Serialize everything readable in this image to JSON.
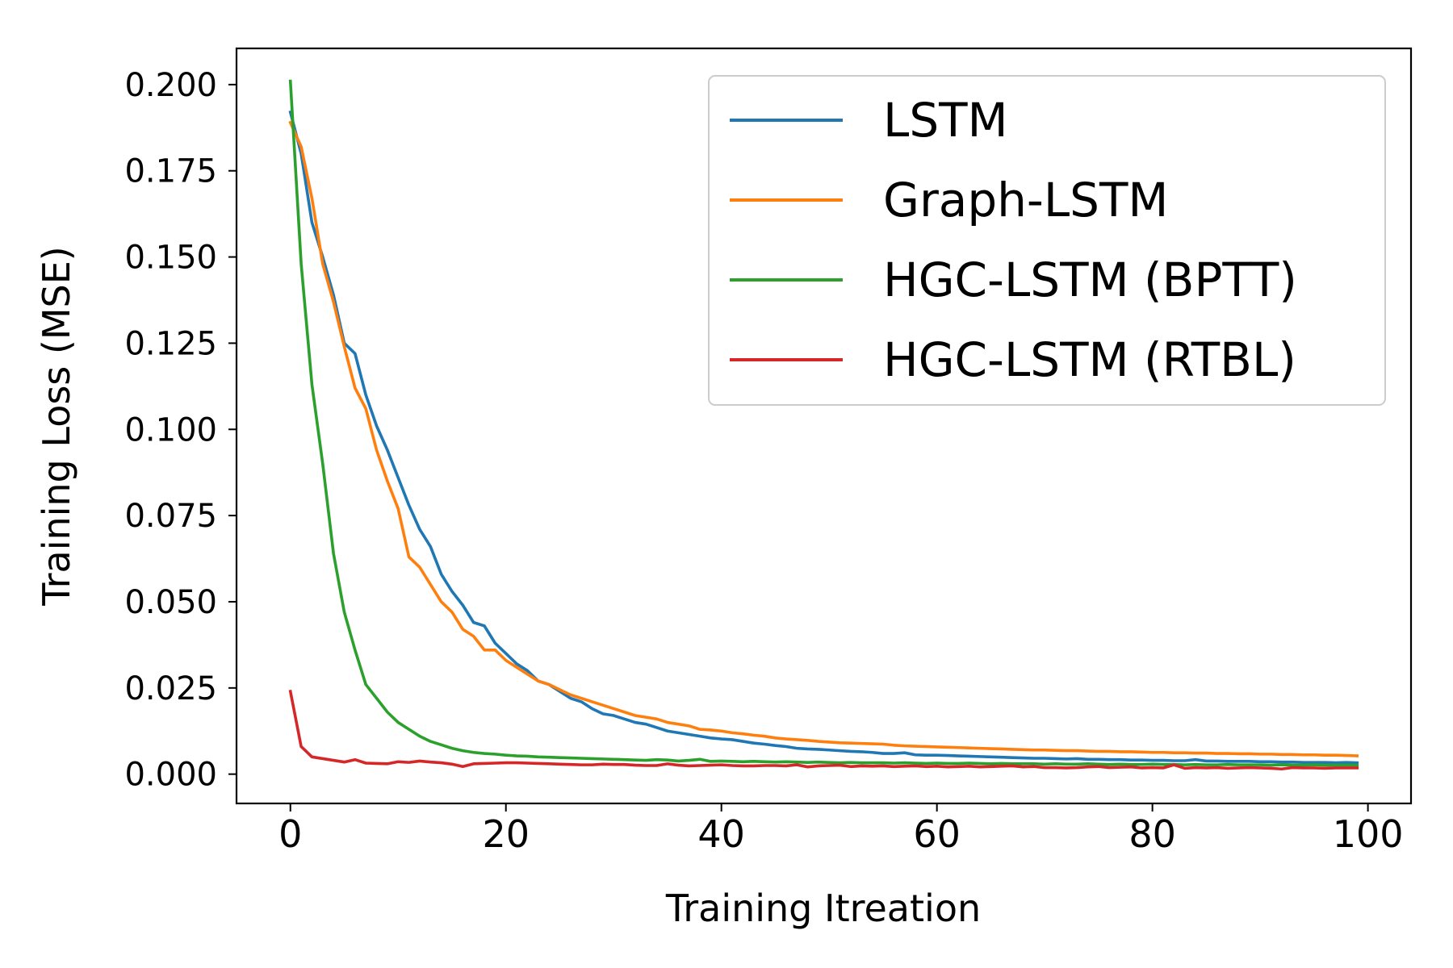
{
  "chart_data": {
    "type": "line",
    "title": "",
    "xlabel": "Training Itreation",
    "ylabel": "Training Loss (MSE)",
    "xlim": [
      -5,
      104
    ],
    "ylim": [
      -0.0085,
      0.2105
    ],
    "xticks": [
      0,
      20,
      40,
      60,
      80,
      100
    ],
    "xtick_labels": [
      "0",
      "20",
      "40",
      "60",
      "80",
      "100"
    ],
    "yticks": [
      0,
      0.025,
      0.05,
      0.075,
      0.1,
      0.125,
      0.15,
      0.175,
      0.2
    ],
    "ytick_labels": [
      "0.000",
      "0.025",
      "0.050",
      "0.075",
      "0.100",
      "0.125",
      "0.150",
      "0.175",
      "0.200"
    ],
    "grid": false,
    "legend_position": "top-right",
    "series": [
      {
        "name": "LSTM",
        "color": "#1f77b4",
        "x": [
          0,
          1,
          2,
          3,
          4,
          5,
          6,
          7,
          8,
          9,
          10,
          11,
          12,
          13,
          14,
          15,
          16,
          17,
          18,
          19,
          20,
          21,
          22,
          23,
          24,
          25,
          26,
          27,
          28,
          29,
          30,
          31,
          32,
          33,
          34,
          35,
          36,
          37,
          38,
          39,
          40,
          41,
          42,
          43,
          44,
          45,
          46,
          47,
          48,
          49,
          50,
          51,
          52,
          53,
          54,
          55,
          56,
          57,
          58,
          59,
          60,
          61,
          62,
          63,
          64,
          65,
          66,
          67,
          68,
          69,
          70,
          71,
          72,
          73,
          74,
          75,
          76,
          77,
          78,
          79,
          80,
          81,
          82,
          83,
          84,
          85,
          86,
          87,
          88,
          89,
          90,
          91,
          92,
          93,
          94,
          95,
          96,
          97,
          98,
          99
        ],
        "y": [
          0.192,
          0.18,
          0.16,
          0.15,
          0.139,
          0.125,
          0.122,
          0.11,
          0.101,
          0.094,
          0.086,
          0.078,
          0.071,
          0.066,
          0.058,
          0.053,
          0.049,
          0.044,
          0.043,
          0.038,
          0.035,
          0.032,
          0.03,
          0.027,
          0.026,
          0.024,
          0.022,
          0.021,
          0.019,
          0.0175,
          0.017,
          0.016,
          0.015,
          0.0145,
          0.0135,
          0.0125,
          0.012,
          0.0115,
          0.011,
          0.0105,
          0.0102,
          0.01,
          0.0095,
          0.009,
          0.0087,
          0.0083,
          0.008,
          0.0075,
          0.0073,
          0.0072,
          0.007,
          0.0068,
          0.0066,
          0.0065,
          0.0063,
          0.006,
          0.006,
          0.0062,
          0.0056,
          0.0055,
          0.0055,
          0.0054,
          0.0053,
          0.0052,
          0.0051,
          0.005,
          0.0049,
          0.0048,
          0.0047,
          0.0046,
          0.0046,
          0.0045,
          0.0044,
          0.0045,
          0.0043,
          0.0043,
          0.0042,
          0.0042,
          0.0041,
          0.0041,
          0.004,
          0.004,
          0.0039,
          0.0039,
          0.0042,
          0.0038,
          0.0038,
          0.0037,
          0.0037,
          0.0037,
          0.0036,
          0.0036,
          0.0035,
          0.0035,
          0.0034,
          0.0034,
          0.0034,
          0.0033,
          0.0034,
          0.0033
        ]
      },
      {
        "name": "Graph-LSTM",
        "color": "#ff7f0e",
        "x": [
          0,
          1,
          2,
          3,
          4,
          5,
          6,
          7,
          8,
          9,
          10,
          11,
          12,
          13,
          14,
          15,
          16,
          17,
          18,
          19,
          20,
          21,
          22,
          23,
          24,
          25,
          26,
          27,
          28,
          29,
          30,
          31,
          32,
          33,
          34,
          35,
          36,
          37,
          38,
          39,
          40,
          41,
          42,
          43,
          44,
          45,
          46,
          47,
          48,
          49,
          50,
          51,
          52,
          53,
          54,
          55,
          56,
          57,
          58,
          59,
          60,
          61,
          62,
          63,
          64,
          65,
          66,
          67,
          68,
          69,
          70,
          71,
          72,
          73,
          74,
          75,
          76,
          77,
          78,
          79,
          80,
          81,
          82,
          83,
          84,
          85,
          86,
          87,
          88,
          89,
          90,
          91,
          92,
          93,
          94,
          95,
          96,
          97,
          98,
          99
        ],
        "y": [
          0.189,
          0.182,
          0.167,
          0.148,
          0.137,
          0.124,
          0.112,
          0.106,
          0.094,
          0.085,
          0.077,
          0.063,
          0.06,
          0.055,
          0.05,
          0.047,
          0.042,
          0.04,
          0.036,
          0.036,
          0.033,
          0.031,
          0.029,
          0.027,
          0.026,
          0.0245,
          0.023,
          0.022,
          0.021,
          0.02,
          0.019,
          0.018,
          0.017,
          0.0165,
          0.016,
          0.015,
          0.0145,
          0.014,
          0.013,
          0.0128,
          0.0125,
          0.012,
          0.0117,
          0.0113,
          0.011,
          0.0105,
          0.0102,
          0.01,
          0.0098,
          0.0095,
          0.0093,
          0.0091,
          0.009,
          0.0089,
          0.0088,
          0.0087,
          0.0084,
          0.0082,
          0.0081,
          0.008,
          0.0079,
          0.0078,
          0.0077,
          0.0076,
          0.0075,
          0.0074,
          0.0073,
          0.0072,
          0.0071,
          0.007,
          0.007,
          0.0069,
          0.0068,
          0.0068,
          0.0067,
          0.0066,
          0.0066,
          0.0065,
          0.0065,
          0.0064,
          0.0063,
          0.0063,
          0.0062,
          0.0062,
          0.0061,
          0.0061,
          0.006,
          0.006,
          0.0059,
          0.0059,
          0.0058,
          0.0058,
          0.0057,
          0.0057,
          0.0056,
          0.0056,
          0.0055,
          0.0055,
          0.0054,
          0.0053
        ]
      },
      {
        "name": "HGC-LSTM (BPTT)",
        "color": "#2ca02c",
        "x": [
          0,
          1,
          2,
          3,
          4,
          5,
          6,
          7,
          8,
          9,
          10,
          11,
          12,
          13,
          14,
          15,
          16,
          17,
          18,
          19,
          20,
          21,
          22,
          23,
          24,
          25,
          26,
          27,
          28,
          29,
          30,
          31,
          32,
          33,
          34,
          35,
          36,
          37,
          38,
          39,
          40,
          41,
          42,
          43,
          44,
          45,
          46,
          47,
          48,
          49,
          50,
          51,
          52,
          53,
          54,
          55,
          56,
          57,
          58,
          59,
          60,
          61,
          62,
          63,
          64,
          65,
          66,
          67,
          68,
          69,
          70,
          71,
          72,
          73,
          74,
          75,
          76,
          77,
          78,
          79,
          80,
          81,
          82,
          83,
          84,
          85,
          86,
          87,
          88,
          89,
          90,
          91,
          92,
          93,
          94,
          95,
          96,
          97,
          98,
          99
        ],
        "y": [
          0.201,
          0.148,
          0.113,
          0.09,
          0.064,
          0.047,
          0.036,
          0.026,
          0.022,
          0.018,
          0.015,
          0.013,
          0.011,
          0.0095,
          0.0085,
          0.0075,
          0.0068,
          0.0063,
          0.006,
          0.0058,
          0.0055,
          0.0053,
          0.0052,
          0.005,
          0.0049,
          0.0048,
          0.0047,
          0.0046,
          0.0045,
          0.0044,
          0.0043,
          0.0042,
          0.0041,
          0.004,
          0.0042,
          0.0041,
          0.0038,
          0.004,
          0.0043,
          0.0037,
          0.0038,
          0.0037,
          0.0036,
          0.0037,
          0.0036,
          0.0035,
          0.0036,
          0.0035,
          0.0034,
          0.0035,
          0.0034,
          0.0033,
          0.0034,
          0.0033,
          0.0033,
          0.0033,
          0.0032,
          0.0033,
          0.0032,
          0.0031,
          0.0032,
          0.0031,
          0.0031,
          0.0032,
          0.0031,
          0.003,
          0.0031,
          0.003,
          0.003,
          0.003,
          0.0029,
          0.003,
          0.0029,
          0.0029,
          0.003,
          0.0029,
          0.0028,
          0.0029,
          0.0028,
          0.0028,
          0.0029,
          0.0028,
          0.0028,
          0.0027,
          0.0028,
          0.0027,
          0.0027,
          0.0028,
          0.0027,
          0.0027,
          0.0027,
          0.0026,
          0.0027,
          0.0026,
          0.0026,
          0.0027,
          0.0026,
          0.0026,
          0.0026,
          0.0026
        ]
      },
      {
        "name": "HGC-LSTM (RTBL)",
        "color": "#d62728",
        "x": [
          0,
          1,
          2,
          3,
          4,
          5,
          6,
          7,
          8,
          9,
          10,
          11,
          12,
          13,
          14,
          15,
          16,
          17,
          18,
          19,
          20,
          21,
          22,
          23,
          24,
          25,
          26,
          27,
          28,
          29,
          30,
          31,
          32,
          33,
          34,
          35,
          36,
          37,
          38,
          39,
          40,
          41,
          42,
          43,
          44,
          45,
          46,
          47,
          48,
          49,
          50,
          51,
          52,
          53,
          54,
          55,
          56,
          57,
          58,
          59,
          60,
          61,
          62,
          63,
          64,
          65,
          66,
          67,
          68,
          69,
          70,
          71,
          72,
          73,
          74,
          75,
          76,
          77,
          78,
          79,
          80,
          81,
          82,
          83,
          84,
          85,
          86,
          87,
          88,
          89,
          90,
          91,
          92,
          93,
          94,
          95,
          96,
          97,
          98,
          99
        ],
        "y": [
          0.024,
          0.008,
          0.005,
          0.0045,
          0.004,
          0.0035,
          0.0042,
          0.0032,
          0.0031,
          0.003,
          0.0036,
          0.0034,
          0.0038,
          0.0035,
          0.0033,
          0.0029,
          0.0022,
          0.003,
          0.0031,
          0.0032,
          0.0033,
          0.0033,
          0.0032,
          0.0031,
          0.003,
          0.0029,
          0.0028,
          0.0027,
          0.0027,
          0.0029,
          0.0028,
          0.0028,
          0.0026,
          0.0025,
          0.0025,
          0.003,
          0.0026,
          0.0024,
          0.0025,
          0.0026,
          0.0027,
          0.0025,
          0.0024,
          0.0024,
          0.0025,
          0.0025,
          0.0024,
          0.0027,
          0.0021,
          0.0024,
          0.0025,
          0.0026,
          0.0022,
          0.0024,
          0.0023,
          0.0024,
          0.0022,
          0.0023,
          0.0024,
          0.0022,
          0.0023,
          0.0021,
          0.0022,
          0.0023,
          0.0021,
          0.0022,
          0.0023,
          0.0024,
          0.0021,
          0.0022,
          0.0019,
          0.0019,
          0.0018,
          0.0019,
          0.0021,
          0.0022,
          0.0019,
          0.002,
          0.0021,
          0.0018,
          0.0019,
          0.0018,
          0.0027,
          0.0017,
          0.0019,
          0.0018,
          0.0019,
          0.0017,
          0.0018,
          0.0019,
          0.0018,
          0.0017,
          0.0015,
          0.0019,
          0.0018,
          0.0018,
          0.0017,
          0.0018,
          0.0018,
          0.0018
        ]
      }
    ]
  }
}
